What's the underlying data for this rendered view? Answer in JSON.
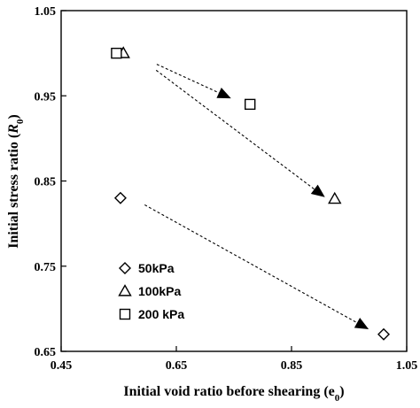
{
  "chart_data": {
    "type": "scatter",
    "xlabel": "Initial void ratio before shearing (e",
    "xlabel_sub": "0",
    "xlabel_suffix": ")",
    "ylabel": "Initial stress ratio (",
    "ylabel_italic": "R",
    "ylabel_sub": "0",
    "ylabel_suffix": ")",
    "xlim": [
      0.45,
      1.05
    ],
    "ylim": [
      0.65,
      1.05
    ],
    "xticks": [
      0.45,
      0.65,
      0.85,
      1.05
    ],
    "xtick_labels": [
      "0.45",
      "0.65",
      "0.85",
      "1.05"
    ],
    "yticks": [
      0.65,
      0.75,
      0.85,
      0.95,
      1.05
    ],
    "ytick_labels": [
      "0.65",
      "0.75",
      "0.85",
      "0.95",
      "1.05"
    ],
    "grid": false,
    "legend_position": "bottom-left",
    "series": [
      {
        "name": "50kPa",
        "marker": "diamond",
        "points": [
          [
            0.553,
            0.83
          ],
          [
            1.01,
            0.67
          ]
        ]
      },
      {
        "name": "100kPa",
        "marker": "triangle",
        "points": [
          [
            0.558,
            1.0
          ],
          [
            0.925,
            0.829
          ]
        ]
      },
      {
        "name": "200 kPa",
        "marker": "square",
        "points": [
          [
            0.546,
            1.0
          ],
          [
            0.778,
            0.94
          ]
        ]
      }
    ],
    "arrows": [
      {
        "from": [
          0.616,
          0.987
        ],
        "to": [
          0.745,
          0.947
        ]
      },
      {
        "from": [
          0.615,
          0.98
        ],
        "to": [
          0.908,
          0.831
        ]
      },
      {
        "from": [
          0.595,
          0.822
        ],
        "to": [
          0.984,
          0.676
        ]
      }
    ],
    "colors": {
      "marker_stroke": "#000000",
      "arrow": "#000000"
    }
  }
}
